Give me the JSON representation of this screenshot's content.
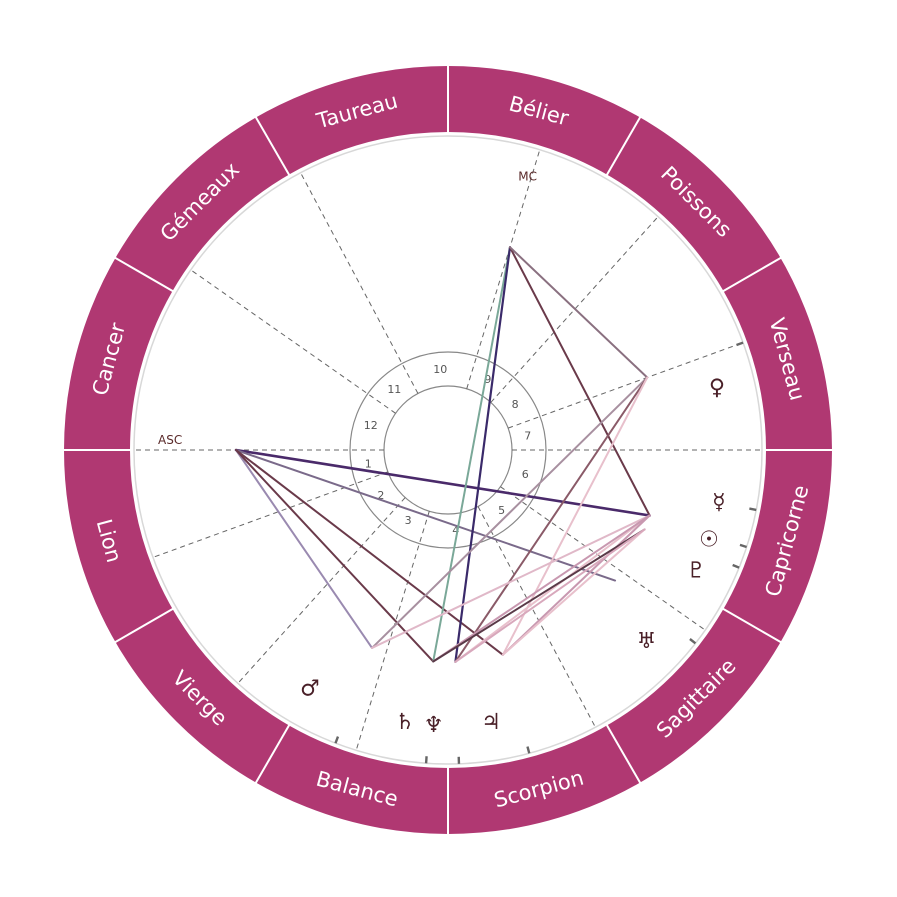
{
  "colors": {
    "ring": "#b03872",
    "separator": "#ffffff",
    "circle": "#d8d8d8",
    "cusp": "#666666",
    "inner_circle": "#888888",
    "tick": "#666666"
  },
  "zodiac": [
    {
      "name": "Bélier",
      "start": 60
    },
    {
      "name": "Taureau",
      "start": 90
    },
    {
      "name": "Gémeaux",
      "start": 120
    },
    {
      "name": "Cancer",
      "start": 150
    },
    {
      "name": "Lion",
      "start": 180
    },
    {
      "name": "Vierge",
      "start": 210
    },
    {
      "name": "Balance",
      "start": 240
    },
    {
      "name": "Scorpion",
      "start": 270
    },
    {
      "name": "Sagittaire",
      "start": 300
    },
    {
      "name": "Capricorne",
      "start": 330
    },
    {
      "name": "Verseau",
      "start": 0
    },
    {
      "name": "Poissons",
      "start": 30
    }
  ],
  "houses": [
    {
      "num": "1",
      "cusp": 180
    },
    {
      "num": "2",
      "cusp": 200
    },
    {
      "num": "3",
      "cusp": 228
    },
    {
      "num": "4",
      "cusp": 253
    },
    {
      "num": "5",
      "cusp": 298
    },
    {
      "num": "6",
      "cusp": 325
    },
    {
      "num": "7",
      "cusp": 0
    },
    {
      "num": "8",
      "cusp": 20
    },
    {
      "num": "9",
      "cusp": 48
    },
    {
      "num": "10",
      "cusp": 73
    },
    {
      "num": "11",
      "cusp": 118
    },
    {
      "num": "12",
      "cusp": 145
    }
  ],
  "axes": {
    "asc_label": "ASC",
    "mc_label": "MC"
  },
  "planets": [
    {
      "name": "venus",
      "glyph": "♀",
      "angle": 13,
      "line_angle": 20
    },
    {
      "name": "mercury",
      "glyph": "☿",
      "angle": 349,
      "line_angle": 349
    },
    {
      "name": "sun",
      "glyph": "☉",
      "angle": 341,
      "line_angle": 342
    },
    {
      "name": "pluto",
      "glyph": "♇",
      "angle": 334,
      "line_angle": 338
    },
    {
      "name": "uranus",
      "glyph": "♅",
      "angle": 316,
      "line_angle": 322
    },
    {
      "name": "jupiter",
      "glyph": "♃",
      "angle": 279,
      "line_angle": 285
    },
    {
      "name": "neptune",
      "glyph": "♆",
      "angle": 267,
      "line_angle": 272
    },
    {
      "name": "saturn",
      "glyph": "♄",
      "angle": 261,
      "line_angle": 266
    },
    {
      "name": "mars",
      "glyph": "♂",
      "angle": 240,
      "line_angle": 249
    }
  ],
  "aspects": [
    {
      "a": "asc",
      "b": "sun",
      "color": "#4a2a6a",
      "width": 2.6
    },
    {
      "a": "asc",
      "b": "uranus",
      "color": "#7a6a8a",
      "width": 2
    },
    {
      "a": "asc",
      "b": "mars",
      "color": "#9a8ab0",
      "width": 2
    },
    {
      "a": "asc",
      "b": "saturn",
      "color": "#6a3a4a",
      "width": 2
    },
    {
      "a": "asc",
      "b": "jupiter",
      "color": "#6a3a4a",
      "width": 2
    },
    {
      "a": "mc",
      "b": "saturn",
      "color": "#7aa898",
      "width": 2
    },
    {
      "a": "mc",
      "b": "neptune",
      "color": "#3a2a6a",
      "width": 2.2
    },
    {
      "a": "mc",
      "b": "sun",
      "color": "#6a3a4a",
      "width": 2
    },
    {
      "a": "mc",
      "b": "venus",
      "color": "#8a7080",
      "width": 2
    },
    {
      "a": "venus",
      "b": "mars",
      "color": "#a890a0",
      "width": 2
    },
    {
      "a": "venus",
      "b": "neptune",
      "color": "#8a5a68",
      "width": 2
    },
    {
      "a": "venus",
      "b": "jupiter",
      "color": "#e8c0cc",
      "width": 2
    },
    {
      "a": "sun",
      "b": "mars",
      "color": "#e0b8c8",
      "width": 2
    },
    {
      "a": "sun",
      "b": "neptune",
      "color": "#e8c0cc",
      "width": 2
    },
    {
      "a": "sun",
      "b": "saturn",
      "color": "#c898b0",
      "width": 2
    },
    {
      "a": "sun",
      "b": "jupiter",
      "color": "#c898b0",
      "width": 2
    },
    {
      "a": "pluto",
      "b": "saturn",
      "color": "#5a3a48",
      "width": 2
    },
    {
      "a": "pluto",
      "b": "jupiter",
      "color": "#e8c0cc",
      "width": 2
    },
    {
      "a": "pluto",
      "b": "neptune",
      "color": "#d8a8bc",
      "width": 2
    }
  ]
}
